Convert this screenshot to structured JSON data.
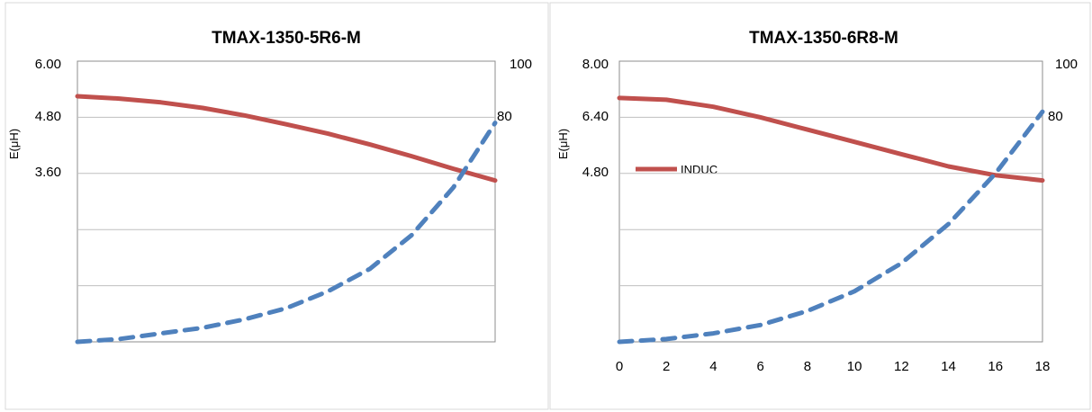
{
  "colors": {
    "inductance": "#c0504d",
    "temperature": "#4f81bd",
    "gridline": "#bfbfbf",
    "axis": "#8c8c8c",
    "frame": "#d9d9d9"
  },
  "chart_data": [
    {
      "type": "line",
      "title": "TMAX-1350-5R6-M",
      "ylabel": "E(μH)",
      "y_ticks": [
        "6.00",
        "4.80",
        "3.60"
      ],
      "ylim": [
        0,
        6
      ],
      "y2_ticks": [
        "100",
        "80"
      ],
      "y2lim": [
        0,
        100
      ],
      "xlim": [
        0,
        20
      ],
      "x_ticks": [],
      "xlabel": "",
      "legend": [
        "",
        ""
      ],
      "series": [
        {
          "axis": "left",
          "style": "solid",
          "x": [
            0,
            2,
            4,
            6,
            8,
            10,
            12,
            14,
            16,
            18,
            20
          ],
          "y": [
            5.25,
            5.2,
            5.12,
            5.0,
            4.84,
            4.65,
            4.45,
            4.22,
            3.97,
            3.7,
            3.45
          ]
        },
        {
          "axis": "right",
          "style": "dashed",
          "x": [
            0,
            2,
            4,
            6,
            8,
            10,
            12,
            14,
            16,
            18,
            20
          ],
          "y": [
            0,
            1,
            3,
            5,
            8,
            12,
            18,
            26,
            38,
            55,
            78
          ]
        }
      ]
    },
    {
      "type": "line",
      "title": "TMAX-1350-6R8-M",
      "ylabel": "E(μH)",
      "y_ticks": [
        "8.00",
        "6.40",
        "4.80"
      ],
      "ylim": [
        0,
        8
      ],
      "y2_ticks": [
        "100",
        "80"
      ],
      "y2lim": [
        0,
        100
      ],
      "xlim": [
        0,
        18
      ],
      "x_ticks": [
        "0",
        "2",
        "4",
        "6",
        "8",
        "10",
        "12",
        "14",
        "16",
        "18"
      ],
      "xlabel": "",
      "legend": [
        "INDUC",
        ""
      ],
      "series": [
        {
          "axis": "left",
          "style": "solid",
          "x": [
            0,
            2,
            4,
            6,
            8,
            10,
            12,
            14,
            16,
            18
          ],
          "y": [
            6.95,
            6.9,
            6.7,
            6.4,
            6.05,
            5.7,
            5.35,
            5.0,
            4.75,
            4.6
          ]
        },
        {
          "axis": "right",
          "style": "dashed",
          "x": [
            0,
            2,
            4,
            6,
            8,
            10,
            12,
            14,
            16,
            18
          ],
          "y": [
            0,
            1,
            3,
            6,
            11,
            18,
            28,
            42,
            60,
            82
          ]
        }
      ]
    }
  ]
}
